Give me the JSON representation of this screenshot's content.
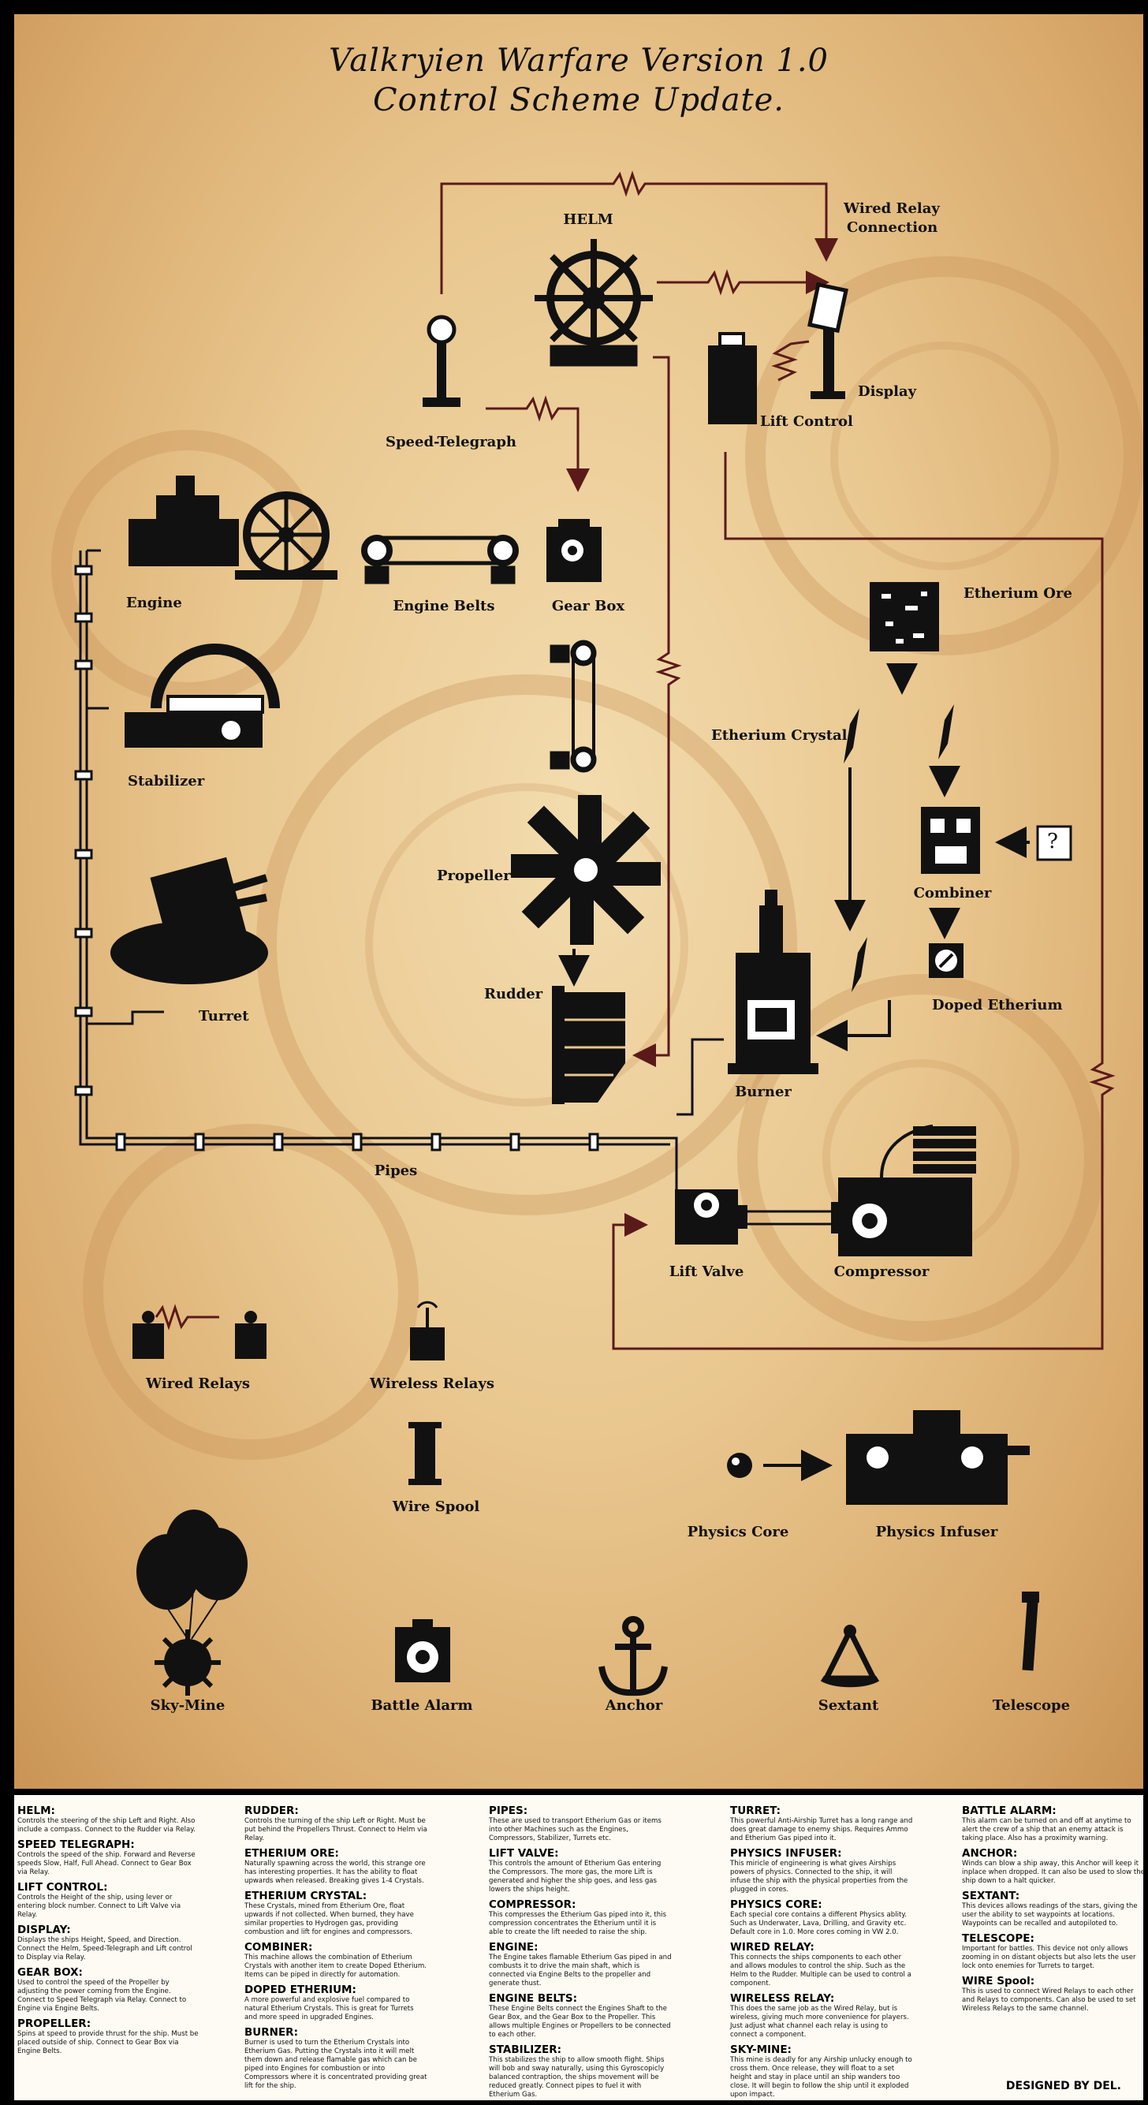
{
  "title_line1": "Valkryien Warfare Version 1.0",
  "title_line2": "Control Scheme Update.",
  "labels": {
    "helm": "HELM",
    "wired_relay_connection_1": "Wired Relay",
    "wired_relay_connection_2": "Connection",
    "speed_telegraph": "Speed-Telegraph",
    "lift_control": "Lift Control",
    "display": "Display",
    "engine": "Engine",
    "engine_belts": "Engine Belts",
    "gear_box": "Gear Box",
    "etherium_ore": "Etherium Ore",
    "etherium_crystal": "Etherium Crystal",
    "stabilizer": "Stabilizer",
    "propeller": "Propeller",
    "combiner": "Combiner",
    "unknown_item": "?",
    "turret": "Turret",
    "rudder": "Rudder",
    "doped_etherium": "Doped Etherium",
    "burner": "Burner",
    "pipes": "Pipes",
    "lift_valve": "Lift Valve",
    "compressor": "Compressor",
    "wired_relays": "Wired Relays",
    "wireless_relays": "Wireless Relays",
    "wire_spool": "Wire Spool",
    "physics_core": "Physics Core",
    "physics_infuser": "Physics Infuser",
    "sky_mine": "Sky-Mine",
    "battle_alarm": "Battle Alarm",
    "anchor": "Anchor",
    "sextant": "Sextant",
    "telescope": "Telescope"
  },
  "legend_columns": [
    [
      {
        "heading": "HELM:",
        "text": "Controls the steering of the ship Left and Right. Also include a compass. Connect to the Rudder via Relay."
      },
      {
        "heading": "SPEED TELEGRAPH:",
        "text": "Controls the speed of the ship. Forward and Reverse speeds Slow, Half, Full Ahead. Connect to Gear Box via Relay."
      },
      {
        "heading": "LIFT CONTROL:",
        "text": "Controls the Height of the ship, using lever or entering block number. Connect to Lift Valve via Relay."
      },
      {
        "heading": "DISPLAY:",
        "text": "Displays the ships Height, Speed, and Direction. Connect the Helm, Speed-Telegraph and Lift control to Display via Relay."
      },
      {
        "heading": "GEAR BOX:",
        "text": "Used to control the speed of the Propeller by adjusting the power coming from the Engine. Connect to Speed Telegraph via Relay. Connect to Engine via Engine Belts."
      },
      {
        "heading": "PROPELLER:",
        "text": "Spins at speed to provide thrust for the ship. Must be placed outside of ship. Connect to Gear Box via Engine Belts."
      }
    ],
    [
      {
        "heading": "RUDDER:",
        "text": "Controls the turning of the ship Left or Right. Must be put behind the Propellers Thrust. Connect to Helm via Relay."
      },
      {
        "heading": "ETHERIUM ORE:",
        "text": "Naturally spawning across the world, this strange ore has interesting properties. It has the ability to float upwards when released. Breaking gives 1-4 Crystals."
      },
      {
        "heading": "ETHERIUM CRYSTAL:",
        "text": "These Crystals, mined from Etherium Ore, float upwards if not collected. When burned, they have similar properties to Hydrogen gas, providing combustion and lift for engines and compressors."
      },
      {
        "heading": "COMBINER:",
        "text": "This machine allows the combination of Etherium Crystals with another item to create Doped Etherium. Items can be piped in directly for automation."
      },
      {
        "heading": "DOPED ETHERIUM:",
        "text": "A more powerful and explosive fuel compared to natural Etherium Crystals. This is great for Turrets and more speed in upgraded Engines."
      },
      {
        "heading": "BURNER:",
        "text": "Burner is used to turn the Etherium Crystals into Etherium Gas. Putting the Crystals into it will melt them down and release flamable gas which can be piped into Engines for combustion or into Compressors where it is concentrated providing great lift for the ship."
      }
    ],
    [
      {
        "heading": "PIPES:",
        "text": "These are used to transport Etherium Gas or items into other Machines such as the Engines, Compressors, Stabilizer, Turrets etc."
      },
      {
        "heading": "LIFT VALVE:",
        "text": "This controls the amount of Etherium Gas entering the Compressors. The more gas, the more Lift is generated and higher the ship goes, and less gas lowers the ships height."
      },
      {
        "heading": "COMPRESSOR:",
        "text": "This compresses the Etherium Gas piped into it, this compression concentrates the Etherium until it is able to create the lift needed to raise the ship."
      },
      {
        "heading": "ENGINE:",
        "text": "The Engine takes flamable Etherium Gas piped in and combusts it to drive the main shaft, which is connected via Engine Belts to the propeller and generate thust."
      },
      {
        "heading": "ENGINE BELTS:",
        "text": "These Engine Belts connect the Engines Shaft to the Gear Box, and the Gear Box to the Propeller. This allows multiple Engines or Propellers to be connected to each other."
      },
      {
        "heading": "STABILIZER:",
        "text": "This stabilizes the ship to allow smooth flight. Ships will bob and sway naturally, using this Gyroscopicly balanced contraption, the ships movement will be reduced greatly. Connect pipes to fuel it with Etherium Gas."
      }
    ],
    [
      {
        "heading": "TURRET:",
        "text": "This powerful Anti-Airship Turret has a long range and does great damage to enemy ships. Requires Ammo and Etherium Gas piped into it."
      },
      {
        "heading": "PHYSICS INFUSER:",
        "text": "This miricle of engineering is what gives Airships powers of physics. Connected to the ship, it will infuse the ship with the physical properties from the plugged in cores."
      },
      {
        "heading": "PHYSICS CORE:",
        "text": "Each special core contains a different Physics ablity. Such as Underwater, Lava, Drilling, and Gravity etc. Default core in 1.0. More cores coming in VW 2.0."
      },
      {
        "heading": "WIRED RELAY:",
        "text": "This connects the ships components to each other and allows modules to control the ship. Such as the Helm to the Rudder. Multiple can be used to control a component."
      },
      {
        "heading": "WIRELESS RELAY:",
        "text": "This does the same job as the Wired Relay, but is wireless, giving much more convenience for players. Just adjust what channel each relay is using to connect a component."
      },
      {
        "heading": "SKY-MINE:",
        "text": "This mine is deadly for any Airship unlucky enough to cross them. Once release, they will float to a set height and stay in place until an ship wanders too close. It will begin to follow the ship until it exploded upon impact."
      }
    ],
    [
      {
        "heading": "BATTLE ALARM:",
        "text": "This alarm can be turned on and off at anytime to alert the crew of a ship that an enemy attack is taking place. Also has a proximity warning."
      },
      {
        "heading": "ANCHOR:",
        "text": "Winds can blow a ship away, this Anchor will keep it inplace when dropped. It can also be used to slow the ship down to a halt quicker."
      },
      {
        "heading": "SEXTANT:",
        "text": "This devices allows readings of the stars, giving the user the ability to set waypoints at locations. Waypoints can be recalled and autopiloted to."
      },
      {
        "heading": "TELESCOPE:",
        "text": "Important for battles. This device not only allows zooming in on distant objects but also lets the user lock onto enemies for Turrets to target."
      },
      {
        "heading": "WIRE Spool:",
        "text": "This is used to connect Wired Relays to each other and Relays to components. Can also be used to set Wireless Relays to the same channel."
      }
    ]
  ],
  "credit": "DESIGNED BY DEL.",
  "colors": {
    "wire": "#5b1a1a",
    "ink": "#111111",
    "paper": "#e9c78f",
    "legend_bg": "#fdfbf4"
  }
}
